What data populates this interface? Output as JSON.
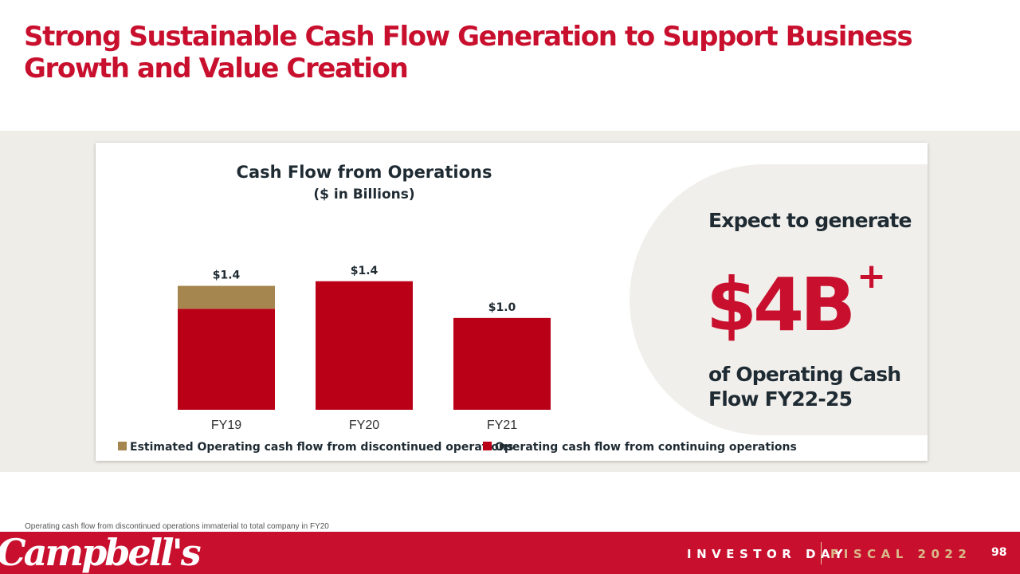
{
  "title": "Strong Sustainable Cash Flow Generation to Support Business Growth and Value Creation",
  "chart_data": {
    "type": "bar",
    "stacked": true,
    "title": "Cash Flow from Operations",
    "subtitle": "($ in Billions)",
    "categories": [
      "FY19",
      "FY20",
      "FY21"
    ],
    "series": [
      {
        "name": "Operating cash flow from continuing operations",
        "color": "#ba0017",
        "values": [
          1.1,
          1.4,
          1.0
        ]
      },
      {
        "name": "Estimated Operating cash flow from discontinued operations",
        "color": "#a6864f",
        "values": [
          0.25,
          0,
          0
        ]
      }
    ],
    "data_labels": [
      "$1.4",
      "$1.4",
      "$1.0"
    ],
    "legend_order": [
      "Estimated Operating cash flow from discontinued operations",
      "Operating cash flow from continuing operations"
    ],
    "ylim": [
      0,
      1.65
    ],
    "xlabel": "",
    "ylabel": "",
    "grid": false,
    "legend_position": "bottom"
  },
  "callout": {
    "expect": "Expect to generate",
    "amount": "$4B",
    "superscript": "+",
    "description": "of Operating Cash Flow FY22-25"
  },
  "footnote": "Operating cash flow from discontinued operations immaterial to total company in FY20",
  "footer": {
    "logo": "Campbell's",
    "event": "INVESTOR DAY",
    "fiscal": "FISCAL 2022",
    "page": "98"
  },
  "colors": {
    "brand_red": "#c8102e",
    "bar_red": "#ba0017",
    "bar_gold": "#a6864f",
    "background_band": "#efede8"
  }
}
